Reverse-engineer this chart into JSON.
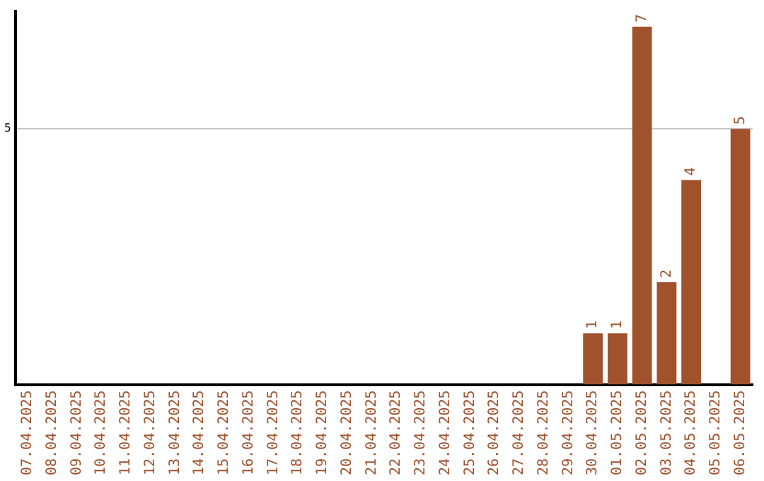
{
  "chart_data": {
    "type": "bar",
    "categories": [
      "07.04.2025",
      "08.04.2025",
      "09.04.2025",
      "10.04.2025",
      "11.04.2025",
      "12.04.2025",
      "13.04.2025",
      "14.04.2025",
      "15.04.2025",
      "16.04.2025",
      "17.04.2025",
      "18.04.2025",
      "19.04.2025",
      "20.04.2025",
      "21.04.2025",
      "22.04.2025",
      "23.04.2025",
      "24.04.2025",
      "25.04.2025",
      "26.04.2025",
      "27.04.2025",
      "28.04.2025",
      "29.04.2025",
      "30.04.2025",
      "01.05.2025",
      "02.05.2025",
      "03.05.2025",
      "04.05.2025",
      "05.05.2025",
      "06.05.2025"
    ],
    "values": [
      null,
      null,
      null,
      null,
      null,
      null,
      null,
      null,
      null,
      null,
      null,
      null,
      null,
      null,
      null,
      null,
      null,
      null,
      null,
      null,
      null,
      null,
      null,
      1,
      1,
      7,
      2,
      4,
      null,
      5
    ],
    "data_labels": true,
    "color": "#a0522d",
    "ylim": [
      0,
      7.3
    ],
    "yticks": [
      5
    ],
    "grid": "y",
    "legend": false
  }
}
